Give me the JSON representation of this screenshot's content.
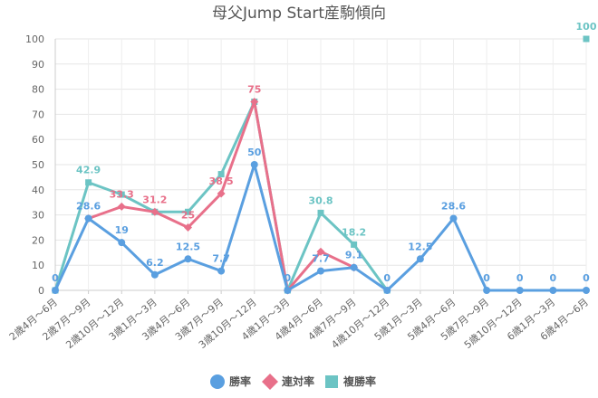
{
  "chart_data": {
    "type": "line",
    "title": "母父Jump Start産駒傾向",
    "categories": [
      "2歳4月～6月",
      "2歳7月～9月",
      "2歳10月～12月",
      "3歳1月～3月",
      "3歳4月～6月",
      "3歳7月～9月",
      "3歳10月～12月",
      "4歳1月～3月",
      "4歳4月～6月",
      "4歳7月～9月",
      "4歳10月～12月",
      "5歳1月～3月",
      "5歳4月～6月",
      "5歳7月～9月",
      "5歳10月～12月",
      "6歳1月～3月",
      "6歳4月～6月"
    ],
    "ylim": [
      0,
      100
    ],
    "yticks": [
      0,
      10,
      20,
      30,
      40,
      50,
      60,
      70,
      80,
      90,
      100
    ],
    "grid": true,
    "legend_position": "bottom",
    "series": [
      {
        "name": "勝率",
        "color": "#5A9FE0",
        "marker": "circle",
        "values": [
          0,
          28.6,
          19,
          6.2,
          12.5,
          7.7,
          50,
          0,
          7.7,
          9.1,
          0,
          12.5,
          28.6,
          0,
          0,
          0,
          0
        ],
        "labels": [
          "0",
          "28.6",
          "19",
          "6.2",
          "12.5",
          "7.7",
          "50",
          "0",
          "7.7",
          "9.1",
          "0",
          "12.5",
          "28.6",
          "0",
          "0",
          "0",
          "0"
        ]
      },
      {
        "name": "連対率",
        "color": "#E8708A",
        "marker": "diamond",
        "values": [
          null,
          28.6,
          33.3,
          31.2,
          25,
          38.5,
          75,
          0,
          15.4,
          9.1,
          null,
          null,
          null,
          null,
          null,
          null,
          null
        ],
        "labels": [
          null,
          null,
          "33.3",
          "31.2",
          "25",
          "38.5",
          "75",
          null,
          null,
          null,
          null,
          null,
          null,
          null,
          null,
          null,
          null
        ]
      },
      {
        "name": "複勝率",
        "color": "#6CC4C4",
        "marker": "square",
        "values": [
          0,
          42.9,
          38.1,
          31.2,
          31.2,
          46.2,
          75,
          0,
          30.8,
          18.2,
          0,
          null,
          null,
          null,
          null,
          null,
          100
        ],
        "labels": [
          null,
          "42.9",
          null,
          null,
          null,
          null,
          null,
          null,
          "30.8",
          "18.2",
          null,
          null,
          null,
          null,
          null,
          null,
          "100"
        ]
      }
    ]
  }
}
